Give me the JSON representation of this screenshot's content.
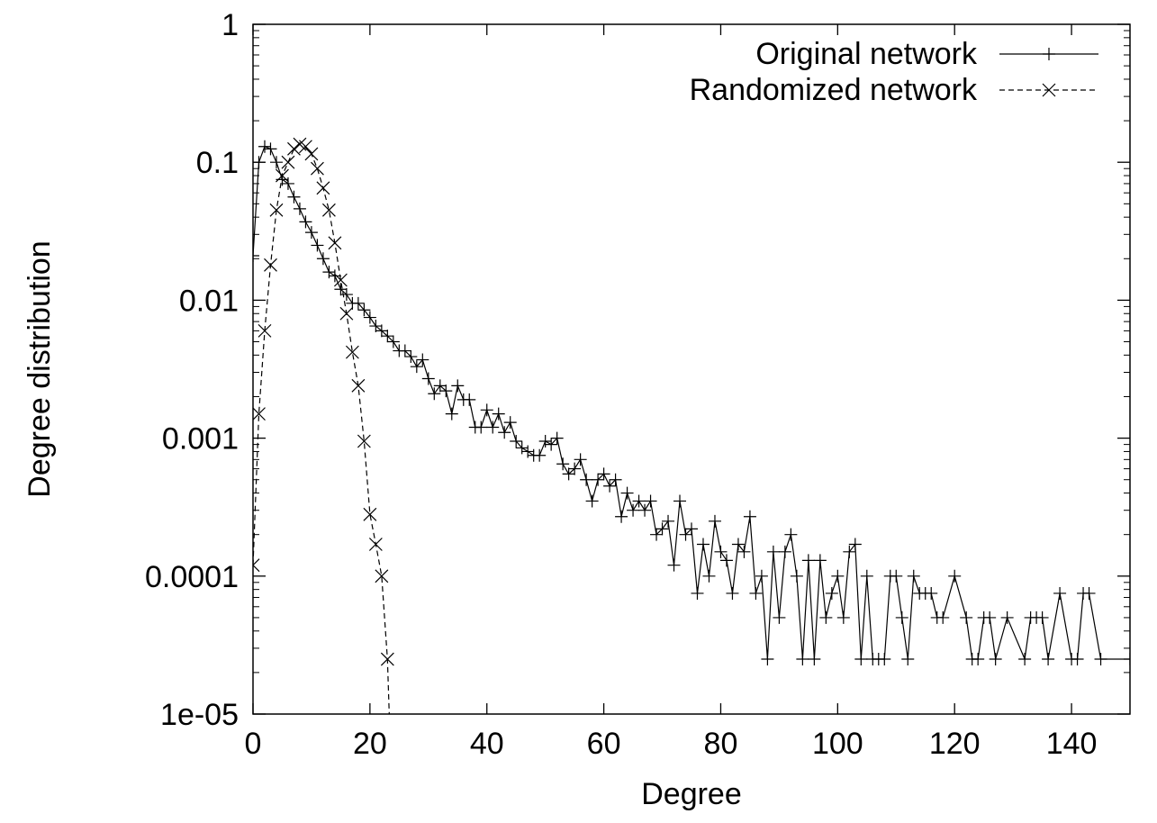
{
  "chart_data": {
    "type": "scatter",
    "title": "",
    "xlabel": "Degree",
    "ylabel": "Degree distribution",
    "xlim": [
      0,
      150
    ],
    "ylim": [
      1e-05,
      1
    ],
    "yscale": "log",
    "grid": false,
    "legend_position": "top-right",
    "x_ticks": [
      0,
      20,
      40,
      60,
      80,
      100,
      120,
      140
    ],
    "x_tick_labels": [
      "0",
      "20",
      "40",
      "60",
      "80",
      "100",
      "120",
      "140"
    ],
    "y_ticks": [
      1e-05,
      0.0001,
      0.001,
      0.01,
      0.1,
      1
    ],
    "y_tick_labels": [
      "1e-05",
      "0.0001",
      "0.001",
      "0.01",
      "0.1",
      "1"
    ],
    "series": [
      {
        "name": "Original network",
        "line_style": "solid",
        "marker": "plus",
        "color": "#000000",
        "points": [
          [
            0,
            0.021
          ],
          [
            1,
            0.1
          ],
          [
            2,
            0.13
          ],
          [
            3,
            0.125
          ],
          [
            4,
            0.1
          ],
          [
            5,
            0.075
          ],
          [
            6,
            0.07
          ],
          [
            7,
            0.056
          ],
          [
            8,
            0.046
          ],
          [
            9,
            0.037
          ],
          [
            10,
            0.031
          ],
          [
            11,
            0.025
          ],
          [
            12,
            0.02
          ],
          [
            13,
            0.016
          ],
          [
            14,
            0.015
          ],
          [
            15,
            0.012
          ],
          [
            16,
            0.011
          ],
          [
            17,
            0.0095
          ],
          [
            18,
            0.0095
          ],
          [
            19,
            0.0085
          ],
          [
            20,
            0.0075
          ],
          [
            21,
            0.0065
          ],
          [
            22,
            0.006
          ],
          [
            23,
            0.0055
          ],
          [
            24,
            0.005
          ],
          [
            25,
            0.0043
          ],
          [
            26,
            0.0043
          ],
          [
            27,
            0.0039
          ],
          [
            28,
            0.0033
          ],
          [
            29,
            0.0037
          ],
          [
            30,
            0.0027
          ],
          [
            31,
            0.0021
          ],
          [
            32,
            0.0024
          ],
          [
            33,
            0.0022
          ],
          [
            34,
            0.0015
          ],
          [
            35,
            0.0024
          ],
          [
            36,
            0.0019
          ],
          [
            37,
            0.0019
          ],
          [
            38,
            0.0012
          ],
          [
            39,
            0.0012
          ],
          [
            40,
            0.0016
          ],
          [
            41,
            0.0012
          ],
          [
            42,
            0.0015
          ],
          [
            43,
            0.0011
          ],
          [
            44,
            0.0013
          ],
          [
            45,
            0.00095
          ],
          [
            46,
            0.00085
          ],
          [
            47,
            0.0008
          ],
          [
            48,
            0.00075
          ],
          [
            49,
            0.00075
          ],
          [
            50,
            0.00095
          ],
          [
            51,
            0.0009
          ],
          [
            52,
            0.001
          ],
          [
            53,
            0.00065
          ],
          [
            54,
            0.00055
          ],
          [
            55,
            0.0006
          ],
          [
            56,
            0.0007
          ],
          [
            57,
            0.0005
          ],
          [
            58,
            0.00035
          ],
          [
            59,
            0.0005
          ],
          [
            60,
            0.00055
          ],
          [
            61,
            0.00045
          ],
          [
            62,
            0.0005
          ],
          [
            63,
            0.00027
          ],
          [
            64,
            0.0004
          ],
          [
            65,
            0.0003
          ],
          [
            66,
            0.00035
          ],
          [
            67,
            0.0003
          ],
          [
            68,
            0.00035
          ],
          [
            69,
            0.0002
          ],
          [
            70,
            0.00022
          ],
          [
            71,
            0.00025
          ],
          [
            72,
            0.00012
          ],
          [
            73,
            0.00035
          ],
          [
            74,
            0.0002
          ],
          [
            75,
            0.00022
          ],
          [
            76,
            7.5e-05
          ],
          [
            77,
            0.00017
          ],
          [
            78,
            0.0001
          ],
          [
            79,
            0.00025
          ],
          [
            80,
            0.00015
          ],
          [
            81,
            0.00013
          ],
          [
            82,
            7.5e-05
          ],
          [
            83,
            0.00017
          ],
          [
            84,
            0.00015
          ],
          [
            85,
            0.00027
          ],
          [
            86,
            7.5e-05
          ],
          [
            87,
            0.0001
          ],
          [
            88,
            2.5e-05
          ],
          [
            89,
            0.00015
          ],
          [
            90,
            5e-05
          ],
          [
            91,
            0.00015
          ],
          [
            92,
            0.0002
          ],
          [
            93,
            0.0001
          ],
          [
            94,
            2.5e-05
          ],
          [
            95,
            0.00013
          ],
          [
            96,
            2.5e-05
          ],
          [
            97,
            0.00013
          ],
          [
            98,
            5e-05
          ],
          [
            99,
            7.5e-05
          ],
          [
            100,
            0.0001
          ],
          [
            101,
            5e-05
          ],
          [
            102,
            0.00015
          ],
          [
            103,
            0.00017
          ],
          [
            104,
            2.5e-05
          ],
          [
            105,
            0.0001
          ],
          [
            106,
            2.5e-05
          ],
          [
            107,
            2.5e-05
          ],
          [
            108,
            2.5e-05
          ],
          [
            109,
            0.0001
          ],
          [
            110,
            0.0001
          ],
          [
            111,
            5e-05
          ],
          [
            112,
            2.5e-05
          ],
          [
            113,
            0.0001
          ],
          [
            114,
            7.5e-05
          ],
          [
            115,
            7.5e-05
          ],
          [
            116,
            7.5e-05
          ],
          [
            117,
            5e-05
          ],
          [
            118,
            5e-05
          ],
          [
            120,
            0.0001
          ],
          [
            122,
            5e-05
          ],
          [
            123,
            2.5e-05
          ],
          [
            124,
            2.5e-05
          ],
          [
            125,
            5e-05
          ],
          [
            126,
            5e-05
          ],
          [
            127,
            2.5e-05
          ],
          [
            129,
            5e-05
          ],
          [
            132,
            2.5e-05
          ],
          [
            133,
            5e-05
          ],
          [
            134,
            5e-05
          ],
          [
            135,
            5e-05
          ],
          [
            136,
            2.5e-05
          ],
          [
            138,
            7.5e-05
          ],
          [
            140,
            2.5e-05
          ],
          [
            141,
            2.5e-05
          ],
          [
            142,
            7.5e-05
          ],
          [
            143,
            7.5e-05
          ],
          [
            145,
            2.5e-05
          ],
          [
            150,
            2.5e-05
          ]
        ]
      },
      {
        "name": "Randomized network",
        "line_style": "dashed",
        "marker": "x",
        "color": "#000000",
        "points": [
          [
            0,
            0.00012
          ],
          [
            1,
            0.0015
          ],
          [
            2,
            0.006
          ],
          [
            3,
            0.018
          ],
          [
            4,
            0.045
          ],
          [
            5,
            0.08
          ],
          [
            6,
            0.1
          ],
          [
            7,
            0.125
          ],
          [
            8,
            0.135
          ],
          [
            9,
            0.13
          ],
          [
            10,
            0.115
          ],
          [
            11,
            0.09
          ],
          [
            12,
            0.065
          ],
          [
            13,
            0.045
          ],
          [
            14,
            0.026
          ],
          [
            15,
            0.014
          ],
          [
            16,
            0.008
          ],
          [
            17,
            0.0042
          ],
          [
            18,
            0.0024
          ],
          [
            19,
            0.00095
          ],
          [
            20,
            0.00028
          ],
          [
            21,
            0.00017
          ],
          [
            22,
            0.0001
          ],
          [
            23,
            2.5e-05
          ],
          [
            23.3,
            1e-05
          ]
        ]
      }
    ]
  }
}
